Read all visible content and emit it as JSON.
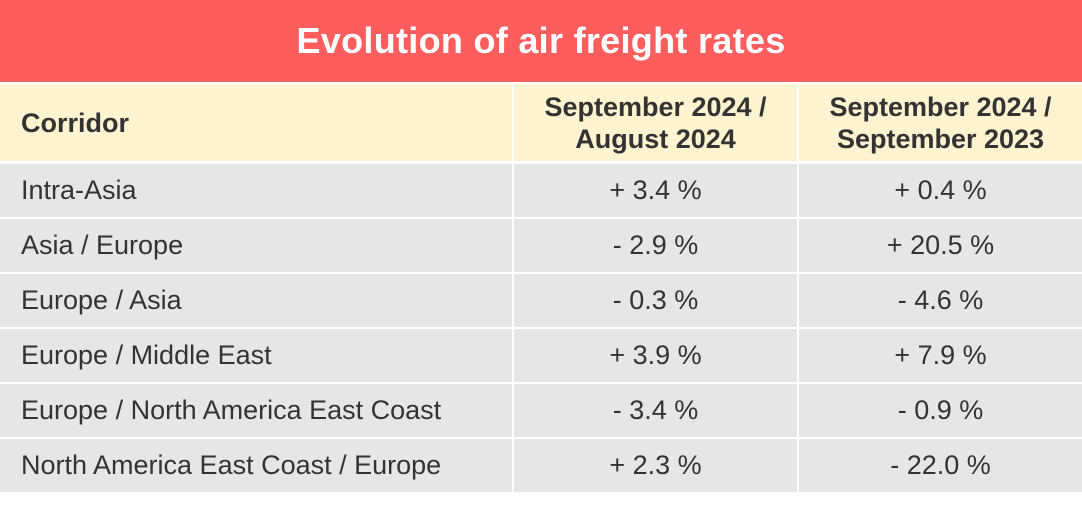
{
  "title": "Evolution of air freight rates",
  "columns": {
    "corridor": "Corridor",
    "col1_line1": "September 2024 /",
    "col1_line2": "August 2024",
    "col2_line1": "September 2024 /",
    "col2_line2": "September 2023"
  },
  "colors": {
    "title_bg": "#fd5d5d",
    "header_bg": "#fff3d0",
    "row_bg": "#e6e6e6",
    "text": "#333333"
  },
  "chart_data": {
    "type": "table",
    "title": "Evolution of air freight rates",
    "columns": [
      "Corridor",
      "September 2024 / August 2024",
      "September 2024 / September 2023"
    ],
    "rows": [
      {
        "corridor": "Intra-Asia",
        "mom": "+ 3.4 %",
        "yoy": "+ 0.4 %"
      },
      {
        "corridor": "Asia / Europe",
        "mom": "- 2.9 %",
        "yoy": "+ 20.5 %"
      },
      {
        "corridor": "Europe / Asia",
        "mom": "- 0.3 %",
        "yoy": "- 4.6 %"
      },
      {
        "corridor": "Europe / Middle East",
        "mom": "+ 3.9 %",
        "yoy": "+ 7.9 %"
      },
      {
        "corridor": "Europe / North America East Coast",
        "mom": "- 3.4 %",
        "yoy": "- 0.9 %"
      },
      {
        "corridor": "North America East Coast / Europe",
        "mom": "+ 2.3 %",
        "yoy": "- 22.0 %"
      }
    ]
  }
}
